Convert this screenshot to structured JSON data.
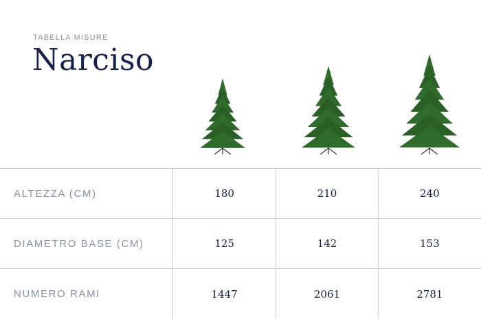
{
  "header": {
    "eyebrow": "TABELLA MISURE",
    "title": "Narciso"
  },
  "images": [
    {
      "icon": "christmas-tree-180"
    },
    {
      "icon": "christmas-tree-210"
    },
    {
      "icon": "christmas-tree-240"
    }
  ],
  "table": {
    "rows": [
      {
        "label": "ALTEZZA (CM)",
        "values": [
          "180",
          "210",
          "240"
        ]
      },
      {
        "label": "DIAMETRO BASE (CM)",
        "values": [
          "125",
          "142",
          "153"
        ]
      },
      {
        "label": "NUMERO RAMI",
        "values": [
          "1447",
          "2061",
          "2781"
        ]
      }
    ]
  },
  "colors": {
    "title": "#17204d",
    "label": "#8b90a8",
    "tree": "#2f6b2a",
    "border": "#c9cad2"
  }
}
